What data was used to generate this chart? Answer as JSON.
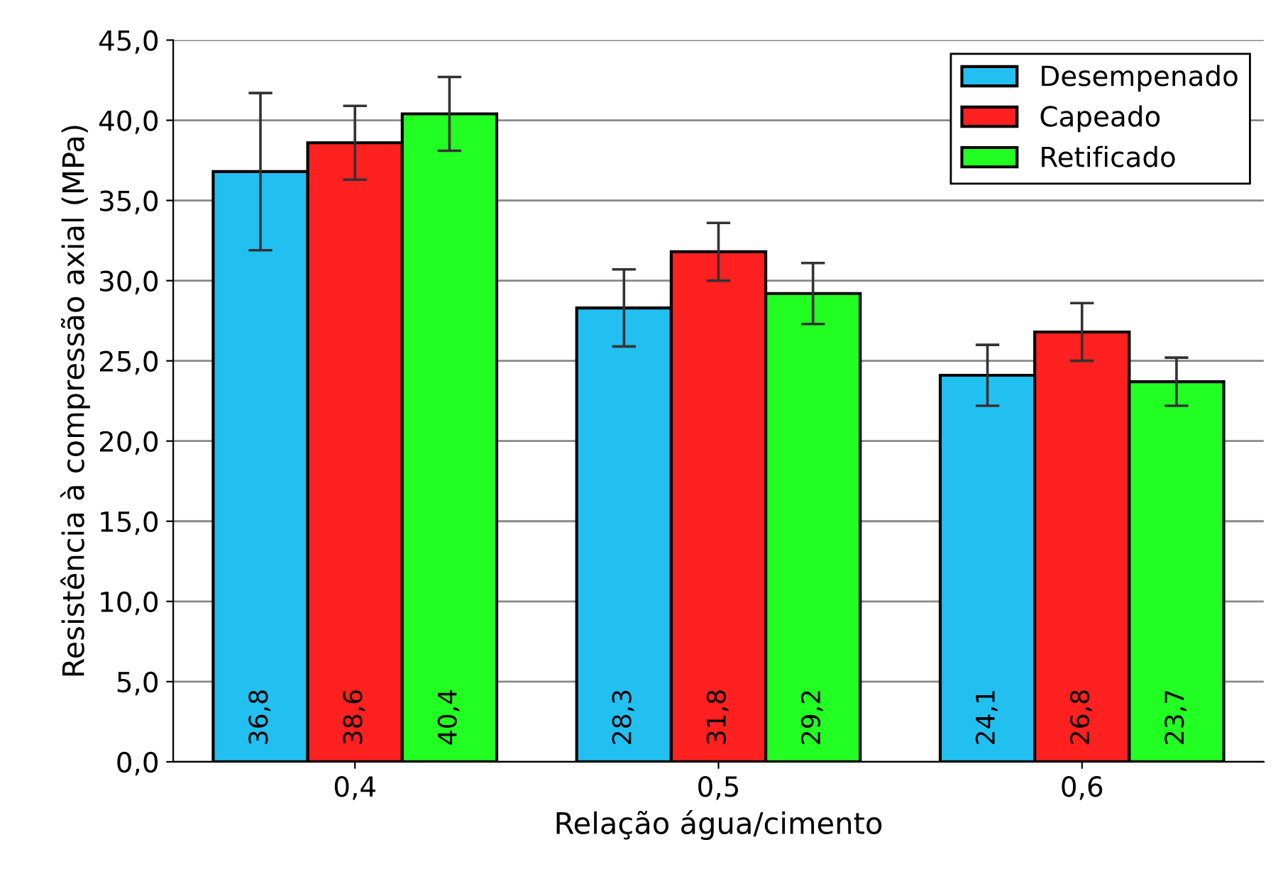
{
  "chart_data": {
    "type": "bar",
    "xlabel": "Relação água/cimento",
    "ylabel": "Resistência à compressão axial (MPa)",
    "categories": [
      "0,4",
      "0,5",
      "0,6"
    ],
    "series": [
      {
        "name": "Desempenado",
        "color": "#22c0f0",
        "values": [
          36.8,
          28.3,
          24.1
        ],
        "errors": [
          4.9,
          2.4,
          1.9
        ],
        "value_labels": [
          "36,8",
          "28,3",
          "24,1"
        ]
      },
      {
        "name": "Capeado",
        "color": "#ff2020",
        "values": [
          38.6,
          31.8,
          26.8
        ],
        "errors": [
          2.3,
          1.8,
          1.8
        ],
        "value_labels": [
          "38,6",
          "31,8",
          "26,8"
        ]
      },
      {
        "name": "Retificado",
        "color": "#22ff22",
        "values": [
          40.4,
          29.2,
          23.7
        ],
        "errors": [
          2.3,
          1.9,
          1.5
        ],
        "value_labels": [
          "40,4",
          "29,2",
          "23,7"
        ]
      }
    ],
    "ylim": [
      0,
      45
    ],
    "yticks": [
      {
        "value": 0,
        "label": "0,0"
      },
      {
        "value": 5,
        "label": "5,0"
      },
      {
        "value": 10,
        "label": "10,0"
      },
      {
        "value": 15,
        "label": "15,0"
      },
      {
        "value": 20,
        "label": "20,0"
      },
      {
        "value": 25,
        "label": "25,0"
      },
      {
        "value": 30,
        "label": "30,0"
      },
      {
        "value": 35,
        "label": "35,0"
      },
      {
        "value": 40,
        "label": "40,0"
      },
      {
        "value": 45,
        "label": "45,0"
      }
    ],
    "grid": "y",
    "legend": "top right"
  }
}
